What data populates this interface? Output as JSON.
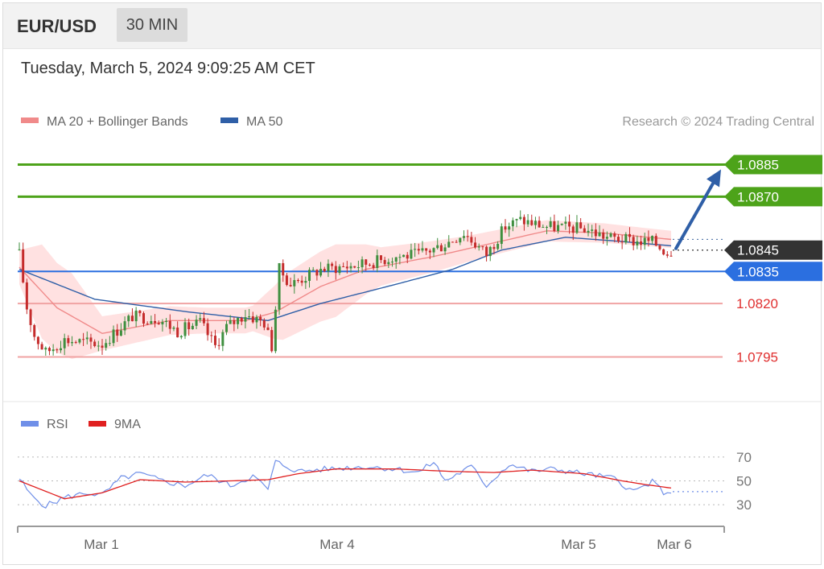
{
  "header": {
    "symbol": "EUR/USD",
    "timeframe": "30 MIN",
    "datetime": "Tuesday, March 5, 2024 9:09:25 AM CET"
  },
  "price_panel": {
    "legend": [
      {
        "label": "MA 20 + Bollinger Bands",
        "color": "#f08a8a"
      },
      {
        "label": "MA 50",
        "color": "#2f5fa7"
      }
    ],
    "credit": "Research © 2024 Trading Central"
  },
  "rsi_panel": {
    "legend": [
      {
        "label": "RSI",
        "color": "#6f8fe8"
      },
      {
        "label": "9MA",
        "color": "#e02020"
      }
    ]
  },
  "colors": {
    "bull": "#3f8f3f",
    "bear": "#c52c2c",
    "target": "#4da31a",
    "current": "#333333",
    "pivot": "#2b6fe0",
    "support": "#e03030",
    "band_fill": "#ffdcdc",
    "arrow": "#2f5fa7"
  },
  "chart_data": [
    {
      "type": "candlestick",
      "title": "EUR/USD",
      "x_tick_labels": [
        "Mar 1",
        "Mar 4",
        "Mar 5",
        "Mar 6"
      ],
      "y_range": [
        1.0785,
        1.0895
      ],
      "levels": [
        {
          "value": 1.0885,
          "label": "1.0885",
          "kind": "target"
        },
        {
          "value": 1.087,
          "label": "1.0870",
          "kind": "target"
        },
        {
          "value": 1.0845,
          "label": "1.0845",
          "kind": "current"
        },
        {
          "value": 1.0835,
          "label": "1.0835",
          "kind": "pivot"
        },
        {
          "value": 1.082,
          "label": "1.0820",
          "kind": "support"
        },
        {
          "value": 1.0795,
          "label": "1.0795",
          "kind": "support"
        }
      ],
      "anchors": [
        {
          "i": 0,
          "c": 1.0843
        },
        {
          "i": 2,
          "c": 1.0818
        },
        {
          "i": 4,
          "c": 1.0805
        },
        {
          "i": 7,
          "c": 1.0797
        },
        {
          "i": 12,
          "c": 1.0803
        },
        {
          "i": 22,
          "c": 1.0801
        },
        {
          "i": 30,
          "c": 1.0814
        },
        {
          "i": 37,
          "c": 1.0813
        },
        {
          "i": 42,
          "c": 1.0807
        },
        {
          "i": 48,
          "c": 1.0811
        },
        {
          "i": 52,
          "c": 1.08
        },
        {
          "i": 55,
          "c": 1.0809
        },
        {
          "i": 60,
          "c": 1.0815
        },
        {
          "i": 65,
          "c": 1.0811
        },
        {
          "i": 67,
          "c": 1.08
        },
        {
          "i": 69,
          "c": 1.0836
        },
        {
          "i": 72,
          "c": 1.0829
        },
        {
          "i": 80,
          "c": 1.0836
        },
        {
          "i": 90,
          "c": 1.0838
        },
        {
          "i": 100,
          "c": 1.0842
        },
        {
          "i": 106,
          "c": 1.0843
        },
        {
          "i": 112,
          "c": 1.0847
        },
        {
          "i": 118,
          "c": 1.0853
        },
        {
          "i": 124,
          "c": 1.0843
        },
        {
          "i": 129,
          "c": 1.0856
        },
        {
          "i": 133,
          "c": 1.0859
        },
        {
          "i": 140,
          "c": 1.0856
        },
        {
          "i": 150,
          "c": 1.0855
        },
        {
          "i": 156,
          "c": 1.0851
        },
        {
          "i": 164,
          "c": 1.0849
        },
        {
          "i": 168,
          "c": 1.0849
        },
        {
          "i": 172,
          "c": 1.0844
        },
        {
          "i": 173,
          "c": 1.0845
        }
      ],
      "ma50_points": [
        {
          "i": 0,
          "v": 1.0836
        },
        {
          "i": 20,
          "v": 1.0822
        },
        {
          "i": 45,
          "v": 1.0816
        },
        {
          "i": 66,
          "v": 1.0812
        },
        {
          "i": 80,
          "v": 1.082
        },
        {
          "i": 100,
          "v": 1.0829
        },
        {
          "i": 115,
          "v": 1.0836
        },
        {
          "i": 128,
          "v": 1.0845
        },
        {
          "i": 145,
          "v": 1.0851
        },
        {
          "i": 160,
          "v": 1.0849
        },
        {
          "i": 173,
          "v": 1.0847
        }
      ],
      "ma20_points": [
        {
          "i": 0,
          "v": 1.0837
        },
        {
          "i": 10,
          "v": 1.0818
        },
        {
          "i": 22,
          "v": 1.0806
        },
        {
          "i": 40,
          "v": 1.0812
        },
        {
          "i": 60,
          "v": 1.0812
        },
        {
          "i": 68,
          "v": 1.0816
        },
        {
          "i": 80,
          "v": 1.0828
        },
        {
          "i": 92,
          "v": 1.0836
        },
        {
          "i": 110,
          "v": 1.0842
        },
        {
          "i": 125,
          "v": 1.0848
        },
        {
          "i": 140,
          "v": 1.0854
        },
        {
          "i": 155,
          "v": 1.0853
        },
        {
          "i": 173,
          "v": 1.085
        }
      ],
      "band_half_width": [
        {
          "i": 0,
          "w": 0.0008
        },
        {
          "i": 6,
          "w": 0.0022
        },
        {
          "i": 14,
          "w": 0.002
        },
        {
          "i": 22,
          "w": 0.0008
        },
        {
          "i": 50,
          "w": 0.0006
        },
        {
          "i": 62,
          "w": 0.0006
        },
        {
          "i": 70,
          "w": 0.0015
        },
        {
          "i": 84,
          "w": 0.0017
        },
        {
          "i": 96,
          "w": 0.0009
        },
        {
          "i": 120,
          "w": 0.0006
        },
        {
          "i": 140,
          "w": 0.0005
        },
        {
          "i": 173,
          "w": 0.0004
        }
      ]
    },
    {
      "type": "line",
      "title": "RSI",
      "y_tick_labels": [
        "70",
        "50",
        "30"
      ],
      "y_range": [
        20,
        80
      ],
      "series": [
        {
          "name": "RSI",
          "points": [
            {
              "i": 0,
              "v": 52
            },
            {
              "i": 3,
              "v": 38
            },
            {
              "i": 7,
              "v": 29
            },
            {
              "i": 12,
              "v": 36
            },
            {
              "i": 18,
              "v": 40
            },
            {
              "i": 22,
              "v": 38
            },
            {
              "i": 27,
              "v": 52
            },
            {
              "i": 32,
              "v": 56
            },
            {
              "i": 38,
              "v": 50
            },
            {
              "i": 44,
              "v": 46
            },
            {
              "i": 50,
              "v": 55
            },
            {
              "i": 56,
              "v": 46
            },
            {
              "i": 62,
              "v": 54
            },
            {
              "i": 66,
              "v": 43
            },
            {
              "i": 68,
              "v": 66
            },
            {
              "i": 74,
              "v": 58
            },
            {
              "i": 82,
              "v": 60
            },
            {
              "i": 92,
              "v": 62
            },
            {
              "i": 100,
              "v": 60
            },
            {
              "i": 106,
              "v": 57
            },
            {
              "i": 110,
              "v": 66
            },
            {
              "i": 113,
              "v": 50
            },
            {
              "i": 120,
              "v": 62
            },
            {
              "i": 124,
              "v": 46
            },
            {
              "i": 130,
              "v": 64
            },
            {
              "i": 136,
              "v": 58
            },
            {
              "i": 142,
              "v": 60
            },
            {
              "i": 150,
              "v": 56
            },
            {
              "i": 158,
              "v": 52
            },
            {
              "i": 163,
              "v": 41
            },
            {
              "i": 168,
              "v": 49
            },
            {
              "i": 172,
              "v": 38
            },
            {
              "i": 173,
              "v": 41
            }
          ]
        },
        {
          "name": "9MA",
          "points": [
            {
              "i": 0,
              "v": 50
            },
            {
              "i": 8,
              "v": 40
            },
            {
              "i": 12,
              "v": 35
            },
            {
              "i": 22,
              "v": 40
            },
            {
              "i": 32,
              "v": 51
            },
            {
              "i": 44,
              "v": 49
            },
            {
              "i": 56,
              "v": 50
            },
            {
              "i": 66,
              "v": 51
            },
            {
              "i": 74,
              "v": 56
            },
            {
              "i": 84,
              "v": 60
            },
            {
              "i": 100,
              "v": 60
            },
            {
              "i": 114,
              "v": 58
            },
            {
              "i": 126,
              "v": 57
            },
            {
              "i": 136,
              "v": 59
            },
            {
              "i": 150,
              "v": 56
            },
            {
              "i": 160,
              "v": 50
            },
            {
              "i": 166,
              "v": 47
            },
            {
              "i": 173,
              "v": 44
            }
          ]
        }
      ]
    }
  ]
}
